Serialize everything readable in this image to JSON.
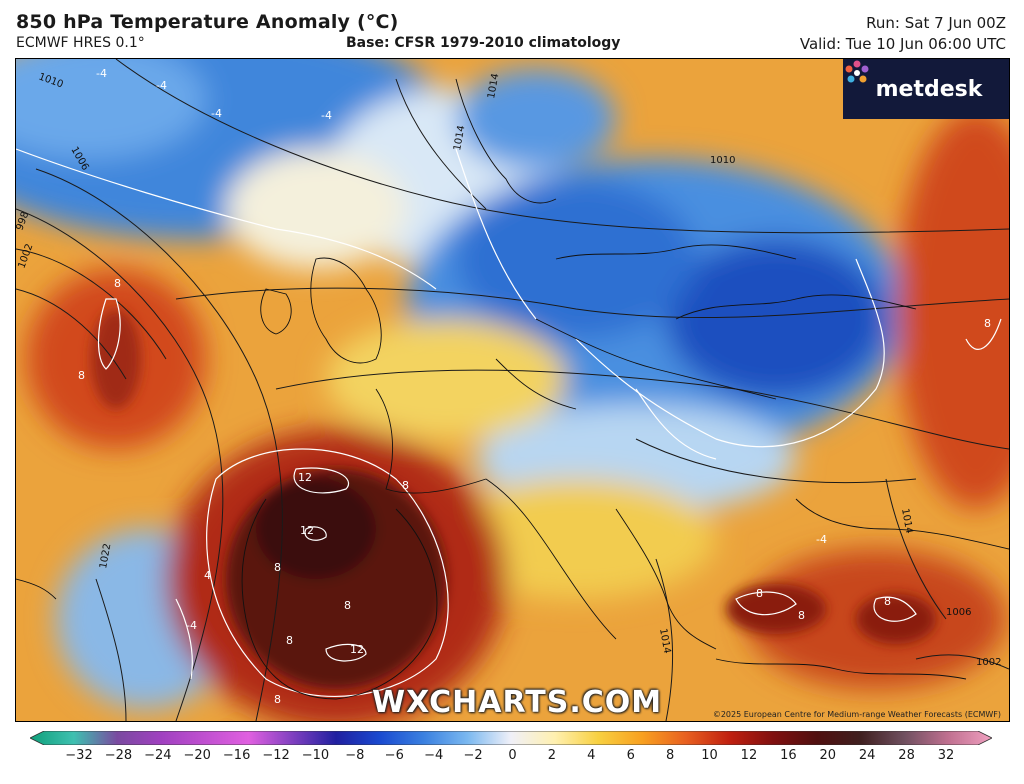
{
  "header": {
    "title": "850 hPa Temperature Anomaly (°C)",
    "model": "ECMWF HRES 0.1°",
    "base": "Base: CFSR 1979-2010 climatology",
    "run": "Run: Sat 7 Jun 00Z",
    "valid": "Valid: Tue 10 Jun 06:00 UTC"
  },
  "brand": {
    "name": "metdesk",
    "icon": "metdesk-flower-icon"
  },
  "watermark": "WXCHARTS.COM",
  "copyright": "©2025 European Centre for Medium-range Weather Forecasts (ECMWF)",
  "map": {
    "anomaly_labels": [
      "-4",
      "-4",
      "-4",
      "-4",
      "-4",
      "4",
      "8",
      "8",
      "8",
      "8",
      "8",
      "8",
      "8",
      "8",
      "8",
      "8",
      "8",
      "12",
      "12",
      "12",
      "-4"
    ],
    "isobar_labels": [
      "1010",
      "1006",
      "1002",
      "998",
      "1014",
      "1014",
      "1010",
      "1014",
      "1022",
      "1014",
      "1006",
      "1002"
    ]
  },
  "colorbar": {
    "ticks": [
      "−32",
      "−28",
      "−24",
      "−20",
      "−16",
      "−12",
      "−10",
      "−8",
      "−6",
      "−4",
      "−2",
      "0",
      "2",
      "4",
      "6",
      "8",
      "10",
      "12",
      "16",
      "20",
      "24",
      "28",
      "32"
    ],
    "colors": [
      "#0fa07a",
      "#3ec0b0",
      "#7a4aa0",
      "#a040c0",
      "#c050d0",
      "#e060e0",
      "#8040c0",
      "#2020a0",
      "#1a4ad0",
      "#3a80e0",
      "#7ab8f0",
      "#f0f0f8",
      "#fff0b0",
      "#f8d040",
      "#f8a020",
      "#e86020",
      "#c02010",
      "#801010",
      "#501010",
      "#402020",
      "#705060",
      "#c07090",
      "#f0a0c0"
    ]
  }
}
